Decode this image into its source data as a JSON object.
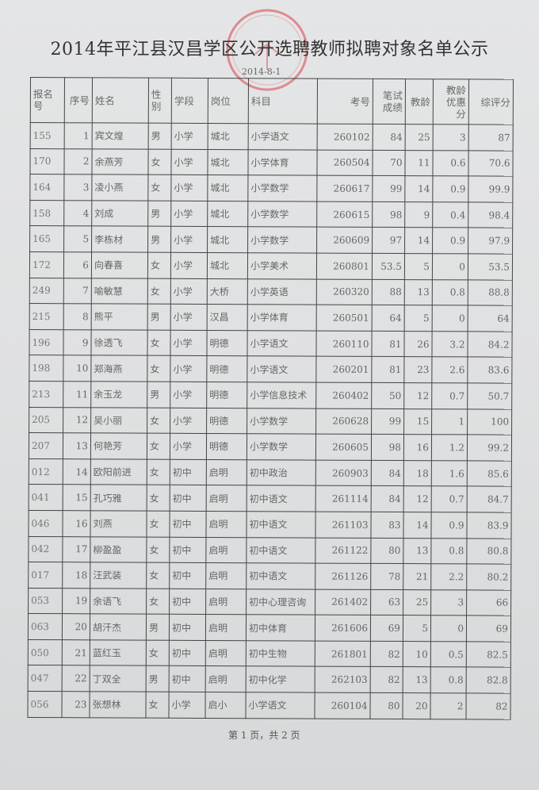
{
  "title": "2014年平江县汉昌学区公开选聘教师拟聘对象名单公示",
  "date": "2014-8-1",
  "stamp_color": "#d9414a",
  "columns": [
    "报名号",
    "序号",
    "姓名",
    "性别",
    "学段",
    "岗位",
    "科目",
    "考号",
    "笔试成绩",
    "教龄",
    "教龄优惠分",
    "综评分"
  ],
  "rows": [
    [
      "155",
      "1",
      "宾文煌",
      "男",
      "小学",
      "城北",
      "小学语文",
      "260102",
      "84",
      "25",
      "3",
      "87"
    ],
    [
      "170",
      "2",
      "余燕芳",
      "女",
      "小学",
      "城北",
      "小学体育",
      "260504",
      "70",
      "11",
      "0.6",
      "70.6"
    ],
    [
      "164",
      "3",
      "凌小燕",
      "女",
      "小学",
      "城北",
      "小学数学",
      "260617",
      "99",
      "14",
      "0.9",
      "99.9"
    ],
    [
      "158",
      "4",
      "刘成",
      "男",
      "小学",
      "城北",
      "小学数学",
      "260615",
      "98",
      "9",
      "0.4",
      "98.4"
    ],
    [
      "165",
      "5",
      "李栋材",
      "男",
      "小学",
      "城北",
      "小学数学",
      "260609",
      "97",
      "14",
      "0.9",
      "97.9"
    ],
    [
      "172",
      "6",
      "向春喜",
      "女",
      "小学",
      "城北",
      "小学美术",
      "260801",
      "53.5",
      "5",
      "0",
      "53.5"
    ],
    [
      "249",
      "7",
      "喻敏慧",
      "女",
      "小学",
      "大桥",
      "小学英语",
      "260320",
      "88",
      "13",
      "0.8",
      "88.8"
    ],
    [
      "215",
      "8",
      "熊平",
      "男",
      "小学",
      "汉昌",
      "小学体育",
      "260501",
      "64",
      "5",
      "0",
      "64"
    ],
    [
      "196",
      "9",
      "徐透飞",
      "女",
      "小学",
      "明德",
      "小学语文",
      "260110",
      "81",
      "26",
      "3.2",
      "84.2"
    ],
    [
      "198",
      "10",
      "郑海燕",
      "女",
      "小学",
      "明德",
      "小学语文",
      "260201",
      "81",
      "23",
      "2.6",
      "83.6"
    ],
    [
      "213",
      "11",
      "余玉龙",
      "男",
      "小学",
      "明德",
      "小学信息技术",
      "260402",
      "50",
      "12",
      "0.7",
      "50.7"
    ],
    [
      "205",
      "12",
      "吴小丽",
      "女",
      "小学",
      "明德",
      "小学数学",
      "260628",
      "99",
      "15",
      "1",
      "100"
    ],
    [
      "207",
      "13",
      "何艳芳",
      "女",
      "小学",
      "明德",
      "小学数学",
      "260605",
      "98",
      "16",
      "1.2",
      "99.2"
    ],
    [
      "012",
      "14",
      "欧阳前进",
      "女",
      "初中",
      "启明",
      "初中政治",
      "260903",
      "84",
      "18",
      "1.6",
      "85.6"
    ],
    [
      "041",
      "15",
      "孔巧雅",
      "女",
      "初中",
      "启明",
      "初中语文",
      "261114",
      "84",
      "12",
      "0.7",
      "84.7"
    ],
    [
      "046",
      "16",
      "刘燕",
      "女",
      "初中",
      "启明",
      "初中语文",
      "261103",
      "83",
      "14",
      "0.9",
      "83.9"
    ],
    [
      "042",
      "17",
      "柳盈盈",
      "女",
      "初中",
      "启明",
      "初中语文",
      "261122",
      "80",
      "13",
      "0.8",
      "80.8"
    ],
    [
      "017",
      "18",
      "汪武装",
      "女",
      "初中",
      "启明",
      "初中语文",
      "261126",
      "78",
      "21",
      "2.2",
      "80.2"
    ],
    [
      "053",
      "19",
      "余语飞",
      "女",
      "初中",
      "启明",
      "初中心理咨询",
      "261402",
      "63",
      "25",
      "3",
      "66"
    ],
    [
      "063",
      "20",
      "胡汗杰",
      "男",
      "初中",
      "启明",
      "初中体育",
      "261606",
      "69",
      "5",
      "0",
      "69"
    ],
    [
      "050",
      "21",
      "蓝红玉",
      "女",
      "初中",
      "启明",
      "初中生物",
      "261801",
      "82",
      "10",
      "0.5",
      "82.5"
    ],
    [
      "047",
      "22",
      "丁双全",
      "男",
      "初中",
      "启明",
      "初中化学",
      "262103",
      "82",
      "13",
      "0.8",
      "82.8"
    ],
    [
      "056",
      "23",
      "张想林",
      "女",
      "小学",
      "启小",
      "小学语文",
      "260104",
      "80",
      "20",
      "2",
      "82"
    ]
  ],
  "footer": "第 1 页，共 2 页"
}
